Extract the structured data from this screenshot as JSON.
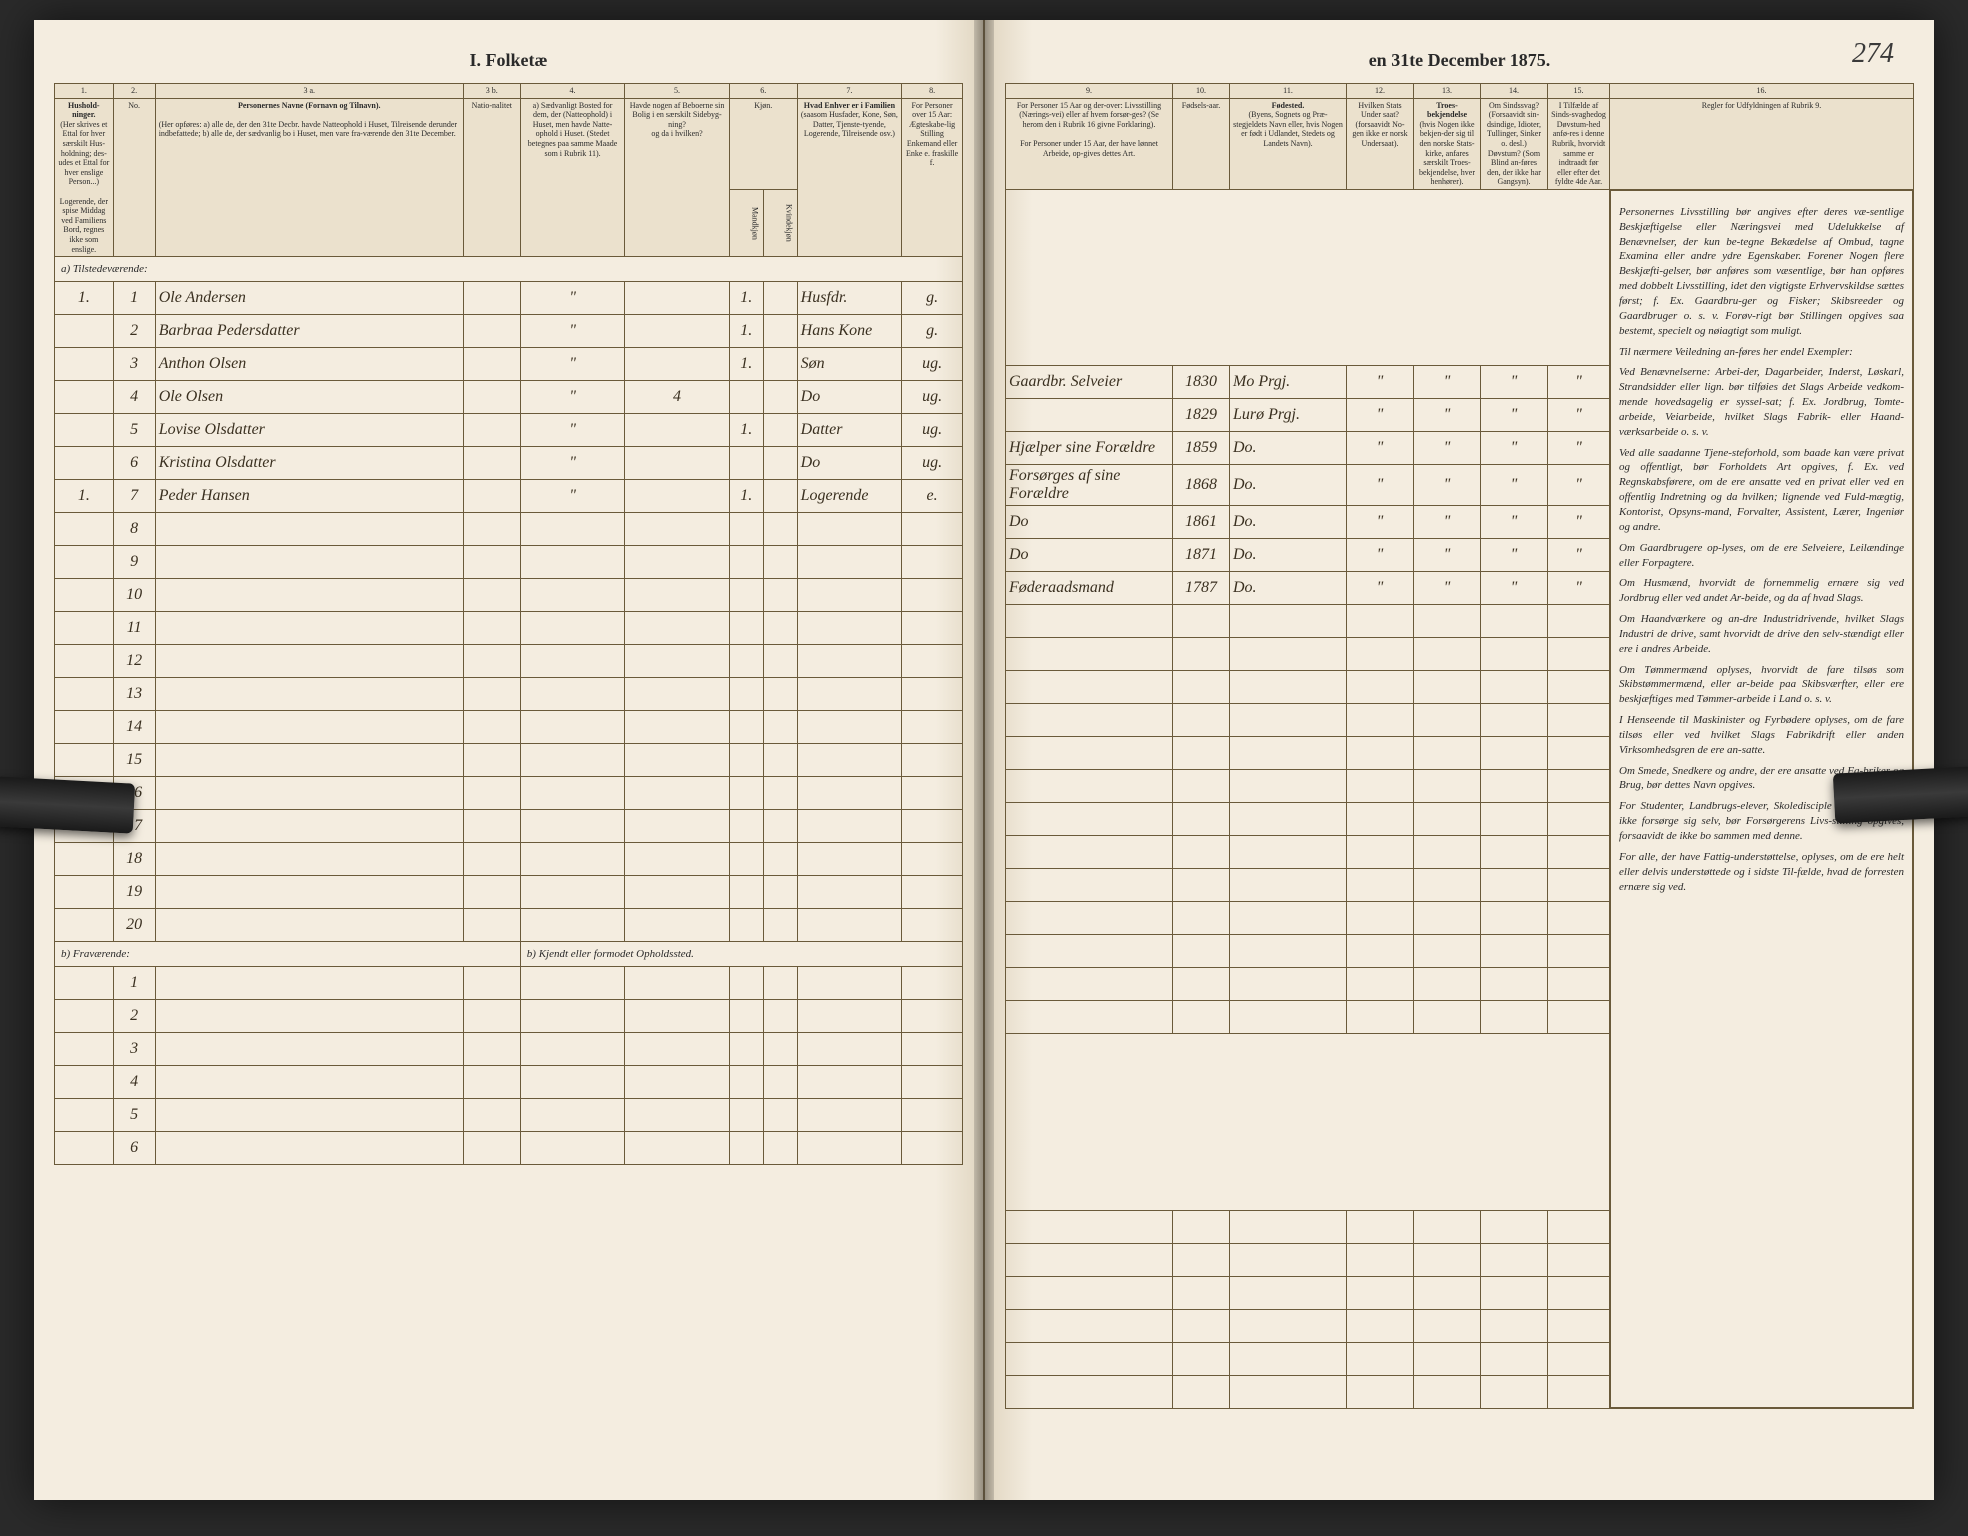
{
  "document": {
    "title_left": "I. Folketæ",
    "title_right": "en 31te December 1875.",
    "page_number": "274",
    "census_year": "1875"
  },
  "colors": {
    "paper": "#f4ede0",
    "ink": "#2a2a2a",
    "rule": "#6a5a3a",
    "handwriting": "#3a3020"
  },
  "left_columns": {
    "c1": "1.",
    "c2": "2.",
    "c3a": "3 a.",
    "c3b": "3 b.",
    "c4": "4.",
    "c5": "5.",
    "c6": "6.",
    "c7": "7.",
    "c8": "8."
  },
  "left_headers": {
    "h1": "Hushold-ninger.",
    "h1_sub": "(Her skrives et Ettal for hver særskilt Hus-holdning; des-udes et Ettal for hver enslige Person...)",
    "h2": "No.",
    "h3a": "Personernes Navne (Fornavn og Tilnavn).",
    "h3a_sub": "(Her opføres:\na) alle de, der den 31te Decbr. havde Natteophold i Huset, Tilreisende derunder indbefattede;\nb) alle de, der sædvanlig bo i Huset, men vare fra-værende den 31te December.",
    "h3a_note": "Logerende, der spise Middag ved Familiens Bord, regnes ikke som enslige.",
    "h3b": "Natio-nalitet",
    "h4": "a) Sædvanligt Bosted for dem, der (Natteophold) i Huset, men havde Natte-ophold i Huset. (Stedet betegnes paa samme Maade som i Rubrik 11).",
    "h5": "Havde nogen af Beboerne sin Bolig i en særskilt Sidebyg-ning?",
    "h5_sub": "og da i hvilken?",
    "h6": "Kjøn.",
    "h6_m": "Mandkjøn",
    "h6_k": "Kvindekjøn",
    "h7": "Hvad Enhver er i Familien",
    "h7_sub": "(saasom Husfader, Kone, Søn, Datter, Tjenste-tyende, Logerende, Tilreisende osv.)",
    "h8": "For Personer over 15 Aar: Ægteskabe-lig Stilling",
    "h8_sub": "Enkemand eller Enke e. fraskille f."
  },
  "right_columns": {
    "c9": "9.",
    "c10": "10.",
    "c11": "11.",
    "c12": "12.",
    "c13": "13.",
    "c14": "14.",
    "c15": "15.",
    "c16": "16."
  },
  "right_headers": {
    "h9": "For Personer 15 Aar og der-over: Livsstilling (Nærings-vei) eller af hvem forsør-ges? (Se herom den i Rubrik 16 givne Forklaring).",
    "h9_sub": "For Personer under 15 Aar, der have lønnet Arbeide, op-gives dettes Art.",
    "h10": "Fødsels-aar.",
    "h11": "Fødested.",
    "h11_sub": "(Byens, Sognets og Præ-stegjeldets Navn eller, hvis Nogen er født i Udlandet, Stedets og Landets Navn).",
    "h12": "Hvilken Stats Under saat?",
    "h12_sub": "(forsaavidt No-gen ikke er norsk Undersaat).",
    "h13": "Troes-bekjendelse",
    "h13_sub": "(hvis Nogen ikke bekjen-der sig til den norske Stats-kirke, anfares særskilt Troes-bekjendelse, hver henhører).",
    "h14": "Om Sindssvag?",
    "h14_sub": "(Forsaavidt sin-dsindige, Idioter, Tullinger, Sinker o. desl.) Døvstum? (Som Blind an-føres den, der ikke har Gangsyn).",
    "h15": "I Tilfælde af Sinds-svaghedog Døvstum-hed anfø-res i denne Rubrik, hvorvidt samme er indtraadt før eller efter det fyldte 4de Aar.",
    "h16": "Regler for Udfyldningen af Rubrik 9."
  },
  "section_a": "a) Tilstedeværende:",
  "section_b": "b) Fraværende:",
  "section_b_note": "b) Kjendt eller formodet Opholdssted.",
  "rows": [
    {
      "hh": "1.",
      "n": "1",
      "name": "Ole Andersen",
      "nat": "",
      "col4": "\"",
      "col5": "",
      "sex": "1.",
      "family": "Husfdr.",
      "marital": "g.",
      "occupation": "Gaardbr. Selveier",
      "year": "1830",
      "birthplace": "Mo Prgj."
    },
    {
      "hh": "",
      "n": "2",
      "name": "Barbraa Pedersdatter",
      "nat": "",
      "col4": "\"",
      "col5": "",
      "sex": "1.",
      "family": "Hans Kone",
      "marital": "g.",
      "occupation": "",
      "year": "1829",
      "birthplace": "Lurø Prgj."
    },
    {
      "hh": "",
      "n": "3",
      "name": "Anthon Olsen",
      "nat": "",
      "col4": "\"",
      "col5": "",
      "sex": "1.",
      "family": "Søn",
      "marital": "ug.",
      "occupation": "Hjælper sine Forældre",
      "year": "1859",
      "birthplace": "Do."
    },
    {
      "hh": "",
      "n": "4",
      "name": "Ole Olsen",
      "nat": "",
      "col4": "\"",
      "col5": "4",
      "sex": "",
      "family": "Do",
      "marital": "ug.",
      "occupation": "Forsørges af sine Forældre",
      "year": "1868",
      "birthplace": "Do."
    },
    {
      "hh": "",
      "n": "5",
      "name": "Lovise Olsdatter",
      "nat": "",
      "col4": "\"",
      "col5": "",
      "sex": "1.",
      "family": "Datter",
      "marital": "ug.",
      "occupation": "Do",
      "year": "1861",
      "birthplace": "Do."
    },
    {
      "hh": "",
      "n": "6",
      "name": "Kristina Olsdatter",
      "nat": "",
      "col4": "\"",
      "col5": "",
      "sex": "",
      "family": "Do",
      "marital": "ug.",
      "occupation": "Do",
      "year": "1871",
      "birthplace": "Do."
    },
    {
      "hh": "1.",
      "n": "7",
      "name": "Peder Hansen",
      "nat": "",
      "col4": "\"",
      "col5": "",
      "sex": "1.",
      "family": "Logerende",
      "marital": "e.",
      "occupation": "Føderaadsmand",
      "year": "1787",
      "birthplace": "Do."
    }
  ],
  "empty_rows_a": [
    "8",
    "9",
    "10",
    "11",
    "12",
    "13",
    "14",
    "15",
    "16",
    "17",
    "18",
    "19",
    "20"
  ],
  "empty_rows_b": [
    "1",
    "2",
    "3",
    "4",
    "5",
    "6"
  ],
  "instructions_text": {
    "p1": "Personernes Livsstilling bør angives efter deres væ-sentlige Beskjæftigelse eller Næringsvei med Udelukkelse af Benævnelser, der kun be-tegne Bekædelse af Ombud, tagne Examina eller andre ydre Egenskaber. Forener Nogen flere Beskjæfti-gelser, bør anføres som væsentlige, bør han opføres med dobbelt Livsstilling, idet den vigtigste Erhvervskildse sættes først; f. Ex. Gaardbru-ger og Fisker; Skibsreeder og Gaardbruger o. s. v. Forøv-rigt bør Stillingen opgives saa bestemt, specielt og nøiagtigt som muligt.",
    "p2": "Til nærmere Veiledning an-føres her endel Exempler:",
    "p3": "Ved Benævnelserne: Arbei-der, Dagarbeider, Inderst, Løskarl, Strandsidder eller lign. bør tilføies det Slags Arbeide vedkom-mende hovedsagelig er syssel-sat; f. Ex. Jordbrug, Tomte-arbeide, Veiarbeide, hvilket Slags Fabrik- eller Haand-værksarbeide o. s. v.",
    "p4": "Ved alle saadanne Tjene-steforhold, som baade kan være privat og offentligt, bør Forholdets Art opgives, f. Ex. ved Regnskabsførere, om de ere ansatte ved en privat eller ved en offentlig Indretning og da hvilken; lignende ved Fuld-mægtig, Kontorist, Opsyns-mand, Forvalter, Assistent, Lærer, Ingeniør og andre.",
    "p5": "Om Gaardbrugere op-lyses, om de ere Selveiere, Leilændinge eller Forpagtere.",
    "p6": "Om Husmænd, hvorvidt de fornemmelig ernære sig ved Jordbrug eller ved andet Ar-beide, og da af hvad Slags.",
    "p7": "Om Haandværkere og an-dre Industridrivende, hvilket Slags Industri de drive, samt hvorvidt de drive den selv-stændigt eller ere i andres Arbeide.",
    "p8": "Om Tømmermænd oplyses, hvorvidt de fare tilsøs som Skibstømmermænd, eller ar-beide paa Skibsværfter, eller ere beskjæftiges med Tømmer-arbeide i Land o. s. v.",
    "p9": "I Henseende til Maskinister og Fyrbødere oplyses, om de fare tilsøs eller ved hvilket Slags Fabrikdrift eller anden Virksomhedsgren de ere an-satte.",
    "p10": "Om Smede, Snedkere og andre, der ere ansatte ved Fa-briker og Brug, bør dettes Navn opgives.",
    "p11": "For Studenter, Landbrugs-elever, Skoledisciple og an-dre, der ikke forsørge sig selv, bør Forsørgerens Livs-stilling opgives, forsaavidt de ikke bo sammen med denne.",
    "p12": "For alle, der have Fattig-understøttelse, oplyses, om de ere helt eller delvis understøttede og i sidste Til-fælde, hvad de forresten ernære sig ved."
  }
}
